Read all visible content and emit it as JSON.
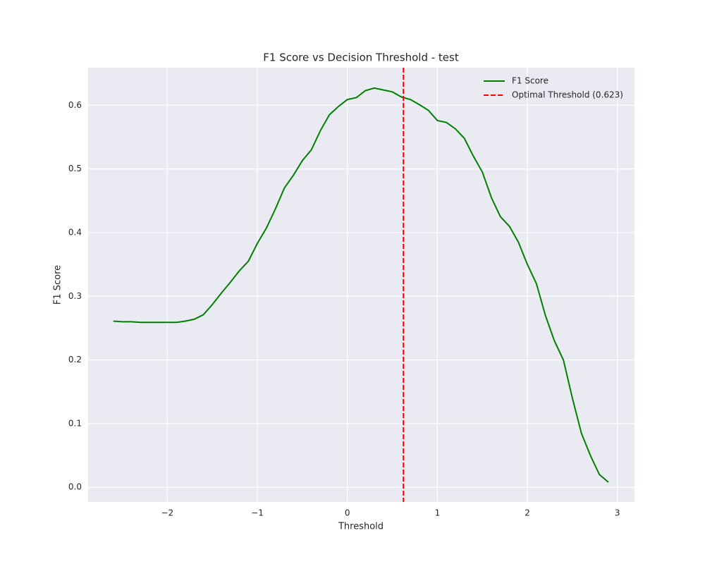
{
  "chart_data": {
    "type": "line",
    "title": "F1 Score vs Decision Threshold - test",
    "xlabel": "Threshold",
    "ylabel": "F1 Score",
    "x": [
      -2.6,
      -2.5,
      -2.4,
      -2.3,
      -2.2,
      -2.1,
      -2.0,
      -1.9,
      -1.8,
      -1.7,
      -1.6,
      -1.5,
      -1.4,
      -1.3,
      -1.2,
      -1.1,
      -1.0,
      -0.9,
      -0.8,
      -0.7,
      -0.6,
      -0.5,
      -0.4,
      -0.3,
      -0.2,
      -0.1,
      0.0,
      0.1,
      0.2,
      0.3,
      0.4,
      0.5,
      0.6,
      0.7,
      0.8,
      0.9,
      1.0,
      1.1,
      1.2,
      1.3,
      1.4,
      1.5,
      1.6,
      1.7,
      1.8,
      1.9,
      2.0,
      2.1,
      2.2,
      2.3,
      2.4,
      2.5,
      2.6,
      2.7,
      2.8,
      2.9
    ],
    "series": [
      {
        "name": "F1 Score",
        "color": "#008000",
        "values": [
          0.261,
          0.26,
          0.26,
          0.259,
          0.259,
          0.259,
          0.259,
          0.259,
          0.261,
          0.264,
          0.271,
          0.287,
          0.305,
          0.322,
          0.34,
          0.355,
          0.383,
          0.407,
          0.437,
          0.47,
          0.49,
          0.513,
          0.53,
          0.56,
          0.585,
          0.598,
          0.609,
          0.612,
          0.623,
          0.627,
          0.624,
          0.621,
          0.613,
          0.609,
          0.601,
          0.592,
          0.576,
          0.573,
          0.563,
          0.548,
          0.52,
          0.495,
          0.455,
          0.425,
          0.41,
          0.385,
          0.35,
          0.32,
          0.27,
          0.23,
          0.2,
          0.14,
          0.085,
          0.05,
          0.02,
          0.008
        ]
      }
    ],
    "threshold": {
      "name": "Optimal Threshold (0.623)",
      "value": 0.623,
      "color": "#ff0000"
    },
    "xlim": [
      -2.88,
      3.19
    ],
    "xticks": [
      {
        "value": -2,
        "label": "−2"
      },
      {
        "value": -1,
        "label": "−1"
      },
      0,
      1,
      2,
      3
    ],
    "ylim": [
      -0.023,
      0.659
    ],
    "yticks": [
      {
        "value": 0,
        "label": "0.0"
      },
      0.1,
      0.2,
      0.3,
      0.4,
      0.5,
      0.6
    ],
    "grid": true,
    "legend": "upper right"
  }
}
